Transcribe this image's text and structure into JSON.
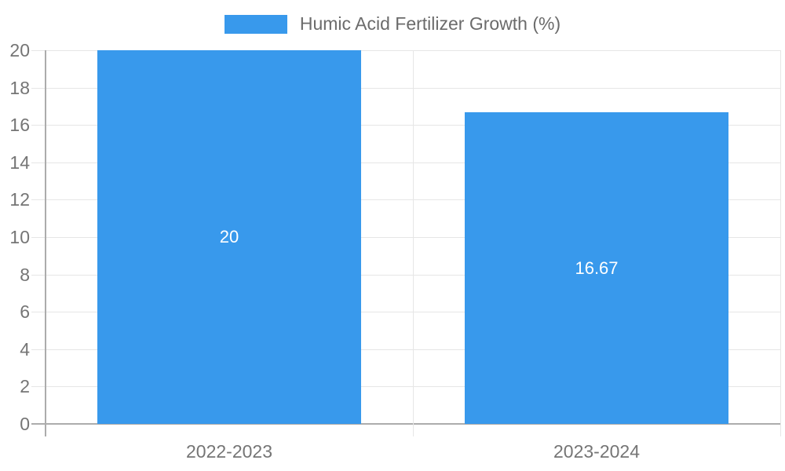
{
  "chart_data": {
    "type": "bar",
    "title": "Humic Acid Fertilizer Growth (%)",
    "categories": [
      "2022-2023",
      "2023-2024"
    ],
    "values": [
      20,
      16.67
    ],
    "bar_labels": [
      "20",
      "16.67"
    ],
    "xlabel": "",
    "ylabel": "",
    "ylim": [
      0,
      20
    ],
    "ytick_step": 2,
    "ytick_labels": [
      "0",
      "2",
      "4",
      "6",
      "8",
      "10",
      "12",
      "14",
      "16",
      "18",
      "20"
    ],
    "legend_position": "top",
    "grid": true,
    "colors": {
      "bar": "#3899EC",
      "bar_value_text": "#ffffff",
      "axis_text": "#757575",
      "legend_text": "#6b6b6b",
      "gridline": "#e6e6e6",
      "axis_line": "#acacac",
      "background": "#ffffff"
    }
  }
}
